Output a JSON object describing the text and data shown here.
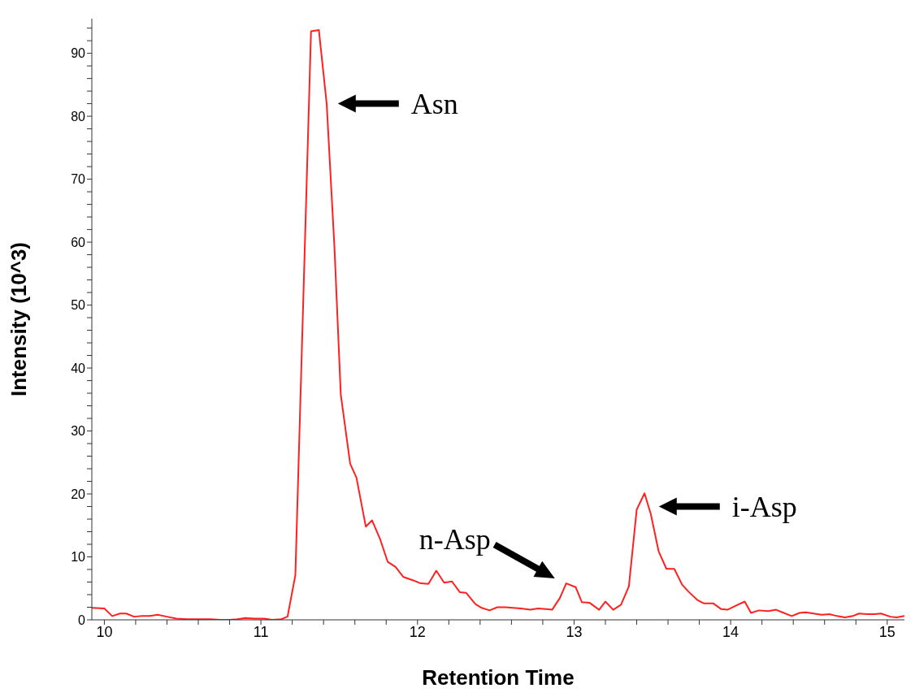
{
  "chart_data": {
    "type": "line",
    "xlabel": "Retention Time",
    "ylabel": "Intensity (10^3)",
    "xlim": [
      9.92,
      15.11
    ],
    "ylim": [
      0,
      95.5
    ],
    "xticks": [
      10,
      {
        "value": 10.2,
        "label": null
      },
      {
        "value": 10.4,
        "label": null
      },
      {
        "value": 10.6,
        "label": null
      },
      {
        "value": 10.8,
        "label": null
      },
      11,
      {
        "value": 11.2,
        "label": null
      },
      {
        "value": 11.4,
        "label": null
      },
      {
        "value": 11.6,
        "label": null
      },
      {
        "value": 11.8,
        "label": null
      },
      12,
      {
        "value": 12.2,
        "label": null
      },
      {
        "value": 12.4,
        "label": null
      },
      {
        "value": 12.6,
        "label": null
      },
      {
        "value": 12.8,
        "label": null
      },
      13,
      {
        "value": 13.2,
        "label": null
      },
      {
        "value": 13.4,
        "label": null
      },
      {
        "value": 13.6,
        "label": null
      },
      {
        "value": 13.8,
        "label": null
      },
      14,
      {
        "value": 14.2,
        "label": null
      },
      {
        "value": 14.4,
        "label": null
      },
      {
        "value": 14.6,
        "label": null
      },
      {
        "value": 14.8,
        "label": null
      },
      15
    ],
    "yticks": [
      0,
      {
        "value": 2,
        "label": null
      },
      {
        "value": 4,
        "label": null
      },
      {
        "value": 6,
        "label": null
      },
      {
        "value": 8,
        "label": null
      },
      10,
      {
        "value": 12,
        "label": null
      },
      {
        "value": 14,
        "label": null
      },
      {
        "value": 16,
        "label": null
      },
      {
        "value": 18,
        "label": null
      },
      20,
      {
        "value": 22,
        "label": null
      },
      {
        "value": 24,
        "label": null
      },
      {
        "value": 26,
        "label": null
      },
      {
        "value": 28,
        "label": null
      },
      30,
      {
        "value": 32,
        "label": null
      },
      {
        "value": 34,
        "label": null
      },
      {
        "value": 36,
        "label": null
      },
      {
        "value": 38,
        "label": null
      },
      40,
      {
        "value": 42,
        "label": null
      },
      {
        "value": 44,
        "label": null
      },
      {
        "value": 46,
        "label": null
      },
      {
        "value": 48,
        "label": null
      },
      50,
      {
        "value": 52,
        "label": null
      },
      {
        "value": 54,
        "label": null
      },
      {
        "value": 56,
        "label": null
      },
      {
        "value": 58,
        "label": null
      },
      60,
      {
        "value": 62,
        "label": null
      },
      {
        "value": 64,
        "label": null
      },
      {
        "value": 66,
        "label": null
      },
      {
        "value": 68,
        "label": null
      },
      70,
      {
        "value": 72,
        "label": null
      },
      {
        "value": 74,
        "label": null
      },
      {
        "value": 76,
        "label": null
      },
      {
        "value": 78,
        "label": null
      },
      80,
      {
        "value": 82,
        "label": null
      },
      {
        "value": 84,
        "label": null
      },
      {
        "value": 86,
        "label": null
      },
      {
        "value": 88,
        "label": null
      },
      90,
      {
        "value": 92,
        "label": null
      },
      {
        "value": 94,
        "label": null
      }
    ],
    "grid": false,
    "marker": "none",
    "line_style": "solid",
    "series": [
      {
        "color": "#ff2020",
        "x": [
          9.92,
          10.0,
          10.05,
          10.1,
          10.14,
          10.19,
          10.24,
          10.29,
          10.34,
          10.4,
          10.46,
          10.53,
          10.61,
          10.68,
          10.74,
          10.8,
          10.85,
          10.9,
          10.96,
          11.02,
          11.07,
          11.13,
          11.17,
          11.22,
          11.32,
          11.37,
          11.42,
          11.47,
          11.51,
          11.57,
          11.61,
          11.67,
          11.71,
          11.76,
          11.81,
          11.86,
          11.91,
          11.97,
          12.02,
          12.07,
          12.12,
          12.17,
          12.22,
          12.27,
          12.31,
          12.37,
          12.41,
          12.46,
          12.51,
          12.56,
          12.61,
          12.66,
          12.72,
          12.77,
          12.82,
          12.86,
          12.91,
          12.95,
          13.01,
          13.05,
          13.1,
          13.16,
          13.2,
          13.25,
          13.3,
          13.35,
          13.4,
          13.45,
          13.49,
          13.54,
          13.59,
          13.64,
          13.69,
          13.73,
          13.79,
          13.83,
          13.89,
          13.94,
          13.98,
          14.03,
          14.09,
          14.13,
          14.18,
          14.24,
          14.29,
          14.33,
          14.39,
          14.44,
          14.48,
          14.53,
          14.58,
          14.63,
          14.68,
          14.73,
          14.78,
          14.82,
          14.87,
          14.92,
          14.96,
          15.02,
          15.06,
          15.11
        ],
        "values": [
          1.9,
          1.8,
          0.6,
          1.0,
          1.0,
          0.5,
          0.6,
          0.6,
          0.8,
          0.5,
          0.2,
          0.1,
          0.1,
          0.1,
          0,
          0,
          0.1,
          0.3,
          0.2,
          0.2,
          0,
          0.1,
          0.5,
          7.1,
          93.5,
          93.7,
          82,
          59,
          35.8,
          24.8,
          22.6,
          14.8,
          15.8,
          12.9,
          9.2,
          8.4,
          6.8,
          6.3,
          5.8,
          5.7,
          7.8,
          5.9,
          6.1,
          4.4,
          4.3,
          2.5,
          1.9,
          1.5,
          2.0,
          2.0,
          1.9,
          1.8,
          1.6,
          1.8,
          1.7,
          1.6,
          3.5,
          5.8,
          5.2,
          2.8,
          2.7,
          1.6,
          2.9,
          1.6,
          2.4,
          5.3,
          17.5,
          20.1,
          16.8,
          10.9,
          8.1,
          8.1,
          5.6,
          4.5,
          3.1,
          2.6,
          2.6,
          1.7,
          1.6,
          2.2,
          2.9,
          1.1,
          1.5,
          1.4,
          1.6,
          1.2,
          0.6,
          1.1,
          1.2,
          1.0,
          0.8,
          0.9,
          0.6,
          0.4,
          0.6,
          1.0,
          0.9,
          0.9,
          1.0,
          0.5,
          0.4,
          0.6
        ]
      }
    ],
    "annotations": [
      {
        "text": "Asn",
        "x": 11.45,
        "y": 82
      },
      {
        "text": "n-Asp",
        "x": 12.95,
        "y": 5.8
      },
      {
        "text": "i-Asp",
        "x": 13.5,
        "y": 18
      }
    ]
  }
}
